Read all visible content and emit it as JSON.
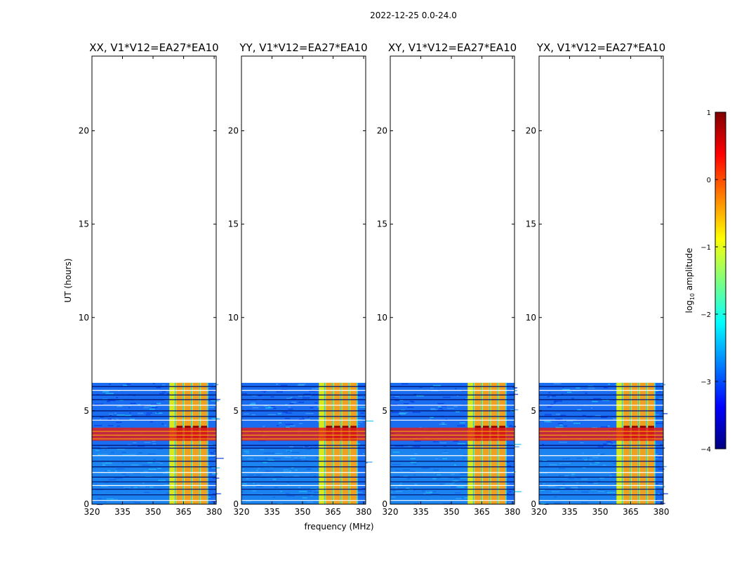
{
  "suptitle": "2022-12-25 0.0-24.0",
  "shared": {
    "ylabel": "UT (hours)",
    "xlabel": "frequency (MHz)",
    "xlim": [
      320,
      381
    ],
    "ylim": [
      0,
      24
    ],
    "xticks": [
      "320",
      "335",
      "350",
      "365",
      "380"
    ],
    "yticks": [
      "0",
      "5",
      "10",
      "15",
      "20"
    ]
  },
  "chart_data": [
    {
      "type": "heatmap",
      "title": "XX, V1*V12=EA27*EA10",
      "data_time_range_hours": [
        0,
        6.5
      ],
      "rfi_band_mhz": [
        358,
        377
      ],
      "rfi_strong_channels_mhz": [
        363,
        367,
        371,
        375
      ],
      "strong_broadband_time_hours": [
        3.4,
        4.1
      ]
    },
    {
      "type": "heatmap",
      "title": "YY, V1*V12=EA27*EA10",
      "data_time_range_hours": [
        0,
        6.5
      ],
      "rfi_band_mhz": [
        358,
        377
      ],
      "rfi_strong_channels_mhz": [
        363,
        367,
        371,
        375
      ],
      "strong_broadband_time_hours": [
        3.4,
        4.1
      ]
    },
    {
      "type": "heatmap",
      "title": "XY, V1*V12=EA27*EA10",
      "data_time_range_hours": [
        0,
        6.5
      ],
      "rfi_band_mhz": [
        358,
        377
      ],
      "rfi_strong_channels_mhz": [
        363,
        367,
        371,
        375
      ],
      "strong_broadband_time_hours": [
        3.4,
        4.1
      ]
    },
    {
      "type": "heatmap",
      "title": "YX, V1*V12=EA27*EA10",
      "data_time_range_hours": [
        0,
        6.5
      ],
      "rfi_band_mhz": [
        358,
        377
      ],
      "rfi_strong_channels_mhz": [
        363,
        367,
        371,
        375
      ],
      "strong_broadband_time_hours": [
        3.4,
        4.1
      ]
    }
  ],
  "colorbar": {
    "label": "log10 amplitude",
    "range": [
      -4,
      1
    ],
    "ticks": [
      "1",
      "0",
      "−1",
      "−2",
      "−3",
      "−4"
    ],
    "colors": [
      "#00007f",
      "#0000ff",
      "#007fff",
      "#00ffff",
      "#7fff7f",
      "#ffff00",
      "#ff7f00",
      "#ff0000",
      "#7f0000"
    ]
  }
}
